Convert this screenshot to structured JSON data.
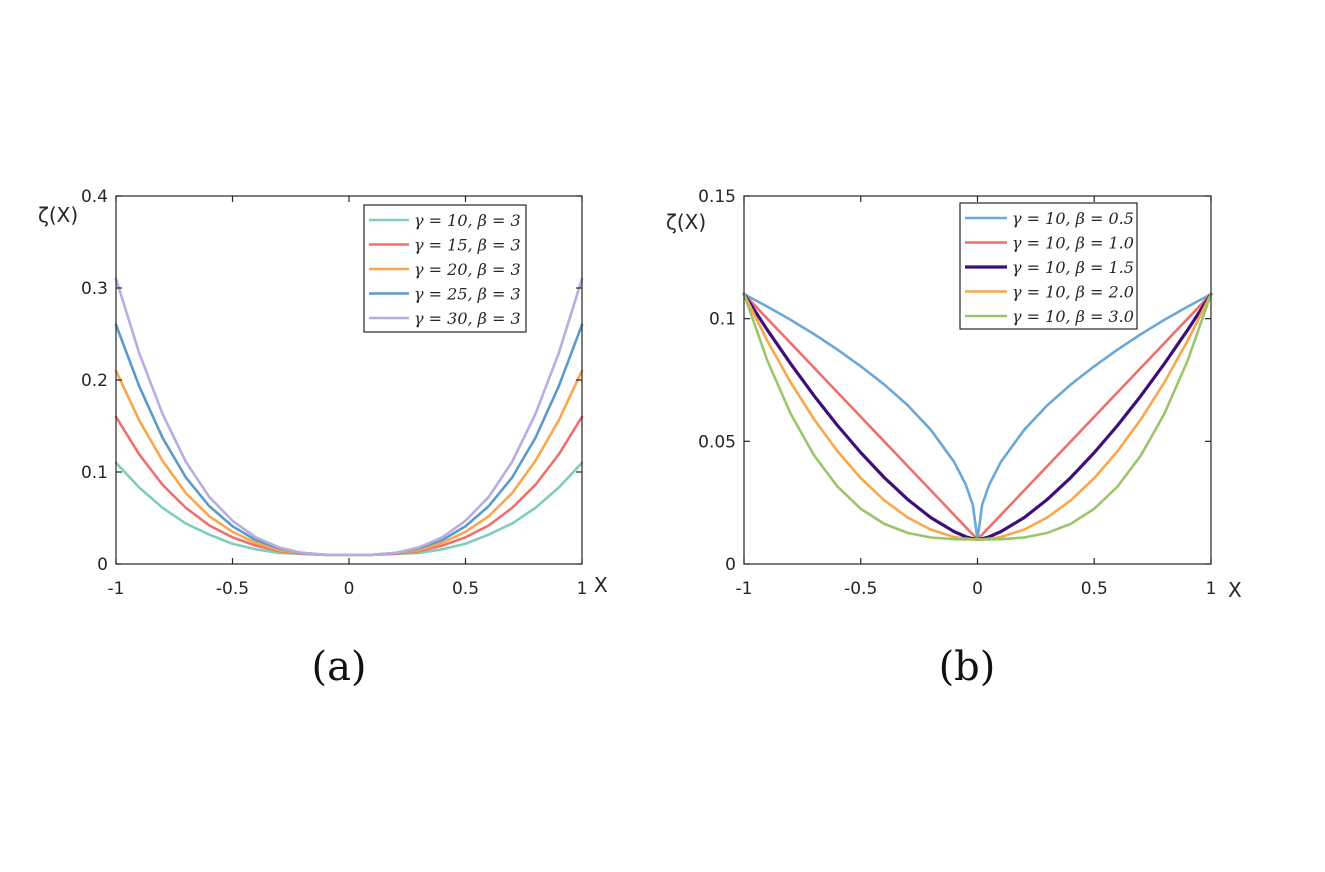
{
  "chart_data": [
    {
      "type": "line",
      "caption": "(a)",
      "ylabel": "ζ(X)",
      "xlabel": "X",
      "xlim": [
        -1,
        1
      ],
      "ylim": [
        0,
        0.4
      ],
      "xticks": [
        -1,
        -0.5,
        0,
        0.5,
        1
      ],
      "xtick_labels": [
        "-1",
        "-0.5",
        "0",
        "0.5",
        "1"
      ],
      "yticks": [
        0,
        0.1,
        0.2,
        0.3,
        0.4
      ],
      "ytick_labels": [
        "0",
        "0.1",
        "0.2",
        "0.3",
        "0.4"
      ],
      "grid": false,
      "legend_position": "top-right",
      "x": [
        -1,
        -0.9,
        -0.8,
        -0.7,
        -0.6,
        -0.5,
        -0.4,
        -0.3,
        -0.2,
        -0.1,
        0,
        0.1,
        0.2,
        0.3,
        0.4,
        0.5,
        0.6,
        0.7,
        0.8,
        0.9,
        1
      ],
      "series": [
        {
          "name": "γ = 10, β = 3",
          "color": "#7fcdbb",
          "width": 2.6,
          "values": [
            0.11,
            0.083,
            0.061,
            0.044,
            0.032,
            0.022,
            0.016,
            0.012,
            0.011,
            0.01,
            0.01,
            0.01,
            0.011,
            0.012,
            0.016,
            0.022,
            0.032,
            0.044,
            0.061,
            0.083,
            0.11
          ]
        },
        {
          "name": "γ = 15, β = 3",
          "color": "#ef6f6c",
          "width": 2.6,
          "values": [
            0.16,
            0.119,
            0.086,
            0.061,
            0.042,
            0.029,
            0.02,
            0.014,
            0.011,
            0.01,
            0.01,
            0.01,
            0.011,
            0.014,
            0.02,
            0.029,
            0.042,
            0.061,
            0.086,
            0.119,
            0.16
          ]
        },
        {
          "name": "γ = 20, β = 3",
          "color": "#f9a74a",
          "width": 2.6,
          "values": [
            0.21,
            0.156,
            0.112,
            0.077,
            0.052,
            0.035,
            0.023,
            0.015,
            0.012,
            0.01,
            0.01,
            0.01,
            0.012,
            0.015,
            0.023,
            0.035,
            0.052,
            0.077,
            0.112,
            0.156,
            0.21
          ]
        },
        {
          "name": "γ = 25, β = 3",
          "color": "#5b9bc8",
          "width": 2.6,
          "values": [
            0.26,
            0.193,
            0.137,
            0.094,
            0.063,
            0.041,
            0.026,
            0.017,
            0.012,
            0.01,
            0.01,
            0.01,
            0.012,
            0.017,
            0.026,
            0.041,
            0.063,
            0.094,
            0.137,
            0.193,
            0.26
          ]
        },
        {
          "name": "γ = 30, β = 3",
          "color": "#b6aee0",
          "width": 2.6,
          "values": [
            0.31,
            0.229,
            0.163,
            0.111,
            0.073,
            0.047,
            0.029,
            0.018,
            0.012,
            0.01,
            0.01,
            0.01,
            0.012,
            0.018,
            0.029,
            0.047,
            0.073,
            0.111,
            0.163,
            0.229,
            0.31
          ]
        }
      ]
    },
    {
      "type": "line",
      "caption": "(b)",
      "ylabel": "ζ(X)",
      "xlabel": "X",
      "xlim": [
        -1,
        1
      ],
      "ylim": [
        0,
        0.15
      ],
      "xticks": [
        -1,
        -0.5,
        0,
        0.5,
        1
      ],
      "xtick_labels": [
        "-1",
        "-0.5",
        "0",
        "0.5",
        "1"
      ],
      "yticks": [
        0,
        0.05,
        0.1,
        0.15
      ],
      "ytick_labels": [
        "0",
        "0.05",
        "0.1",
        "0.15"
      ],
      "grid": false,
      "legend_position": "top-center",
      "x": [
        -1,
        -0.9,
        -0.8,
        -0.7,
        -0.6,
        -0.5,
        -0.4,
        -0.3,
        -0.2,
        -0.1,
        -0.05,
        -0.02,
        0,
        0.02,
        0.05,
        0.1,
        0.2,
        0.3,
        0.4,
        0.5,
        0.6,
        0.7,
        0.8,
        0.9,
        1
      ],
      "series": [
        {
          "name": "γ = 10, β = 0.5",
          "color": "#6aa8d6",
          "width": 2.6,
          "values": [
            0.11,
            0.1049,
            0.0995,
            0.0937,
            0.0874,
            0.0806,
            0.0732,
            0.0648,
            0.0547,
            0.0416,
            0.0323,
            0.0241,
            0.01,
            0.0241,
            0.0323,
            0.0416,
            0.0547,
            0.0648,
            0.0732,
            0.0806,
            0.0874,
            0.0937,
            0.0995,
            0.1049,
            0.11
          ]
        },
        {
          "name": "γ = 10, β = 1.0",
          "color": "#ef6f6c",
          "width": 2.6,
          "values": [
            0.11,
            0.1,
            0.09,
            0.08,
            0.07,
            0.06,
            0.05,
            0.04,
            0.03,
            0.02,
            0.015,
            0.012,
            0.01,
            0.012,
            0.015,
            0.02,
            0.03,
            0.04,
            0.05,
            0.06,
            0.07,
            0.08,
            0.09,
            0.1,
            0.11
          ]
        },
        {
          "name": "γ = 10, β = 1.5",
          "color": "#3d0f7a",
          "width": 3.2,
          "values": [
            0.11,
            0.0954,
            0.0816,
            0.0686,
            0.0565,
            0.0454,
            0.0353,
            0.0264,
            0.0189,
            0.0132,
            0.0111,
            0.0103,
            0.01,
            0.0103,
            0.0111,
            0.0132,
            0.0189,
            0.0264,
            0.0353,
            0.0454,
            0.0565,
            0.0686,
            0.0816,
            0.0954,
            0.11
          ]
        },
        {
          "name": "γ = 10, β = 2.0",
          "color": "#f9a74a",
          "width": 2.6,
          "values": [
            0.11,
            0.091,
            0.074,
            0.059,
            0.046,
            0.035,
            0.026,
            0.019,
            0.014,
            0.011,
            0.0103,
            0.01,
            0.01,
            0.01,
            0.0103,
            0.011,
            0.014,
            0.019,
            0.026,
            0.035,
            0.046,
            0.059,
            0.074,
            0.091,
            0.11
          ]
        },
        {
          "name": "γ = 10, β = 3.0",
          "color": "#9cc56a",
          "width": 2.6,
          "values": [
            0.11,
            0.0829,
            0.0612,
            0.0443,
            0.0316,
            0.0225,
            0.0164,
            0.0127,
            0.0108,
            0.0101,
            0.01,
            0.01,
            0.01,
            0.01,
            0.01,
            0.0101,
            0.0108,
            0.0127,
            0.0164,
            0.0225,
            0.0316,
            0.0443,
            0.0612,
            0.0829,
            0.11
          ]
        }
      ]
    }
  ]
}
